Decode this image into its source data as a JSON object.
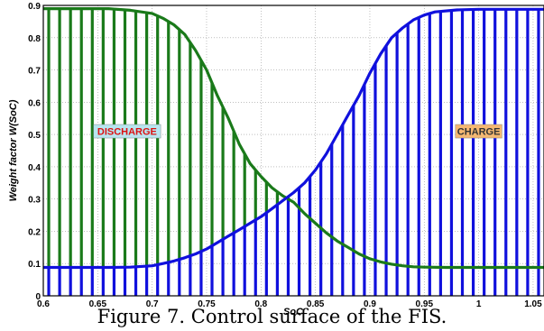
{
  "chart_data": {
    "type": "line",
    "title": "",
    "xlabel": "SoC",
    "ylabel": "Weight factor W(SoC)",
    "xlim": [
      0.6,
      1.06
    ],
    "ylim": [
      0,
      0.9
    ],
    "xticks": [
      "0.6",
      "0.65",
      "0.7",
      "0.75",
      "0.8",
      "0.85",
      "0.9",
      "0.95",
      "1",
      "1.05"
    ],
    "yticks": [
      "0",
      "0.1",
      "0.2",
      "0.3",
      "0.4",
      "0.5",
      "0.6",
      "0.7",
      "0.8",
      "0.9"
    ],
    "grid": true,
    "series": [
      {
        "color": "#1a7a1a",
        "x": [
          0.6,
          0.62,
          0.64,
          0.66,
          0.68,
          0.7,
          0.71,
          0.72,
          0.73,
          0.74,
          0.75,
          0.76,
          0.77,
          0.78,
          0.79,
          0.8,
          0.81,
          0.82,
          0.83,
          0.84,
          0.85,
          0.86,
          0.87,
          0.88,
          0.89,
          0.9,
          0.91,
          0.92,
          0.93,
          0.94,
          0.95,
          0.97,
          1.0,
          1.03,
          1.06
        ],
        "y": [
          0.89,
          0.89,
          0.89,
          0.89,
          0.885,
          0.875,
          0.86,
          0.84,
          0.81,
          0.76,
          0.7,
          0.62,
          0.55,
          0.47,
          0.41,
          0.37,
          0.335,
          0.31,
          0.29,
          0.255,
          0.225,
          0.195,
          0.17,
          0.15,
          0.13,
          0.115,
          0.105,
          0.098,
          0.093,
          0.09,
          0.089,
          0.088,
          0.088,
          0.088,
          0.088
        ]
      },
      {
        "color": "#1010dd",
        "x": [
          0.6,
          0.62,
          0.64,
          0.66,
          0.68,
          0.7,
          0.71,
          0.72,
          0.73,
          0.74,
          0.75,
          0.76,
          0.77,
          0.78,
          0.79,
          0.8,
          0.81,
          0.82,
          0.83,
          0.84,
          0.85,
          0.86,
          0.87,
          0.88,
          0.89,
          0.9,
          0.91,
          0.92,
          0.93,
          0.94,
          0.95,
          0.96,
          0.98,
          1.0,
          1.03,
          1.06
        ],
        "y": [
          0.088,
          0.088,
          0.088,
          0.088,
          0.089,
          0.093,
          0.1,
          0.108,
          0.118,
          0.13,
          0.145,
          0.165,
          0.185,
          0.205,
          0.225,
          0.245,
          0.27,
          0.295,
          0.32,
          0.35,
          0.39,
          0.44,
          0.5,
          0.56,
          0.62,
          0.69,
          0.75,
          0.8,
          0.83,
          0.855,
          0.87,
          0.88,
          0.886,
          0.888,
          0.888,
          0.888
        ]
      }
    ],
    "annotations": [
      {
        "text": "DISCHARGE",
        "x": 0.677,
        "y": 0.51,
        "color": "#dd1111",
        "background": "#b8e6f0"
      },
      {
        "text": "CHARGE",
        "x": 1.0,
        "y": 0.51,
        "color": "#333333",
        "background": "#f5b872"
      }
    ],
    "stripes": {
      "green": {
        "color": "#1a7a1a",
        "from": 0.605,
        "to": 0.825,
        "step": 0.01
      },
      "blue": {
        "color": "#1010dd",
        "from": 0.605,
        "to": 1.065,
        "step": 0.01
      }
    }
  },
  "caption": "Figure 7. Control surface of the FIS."
}
